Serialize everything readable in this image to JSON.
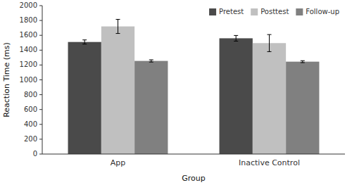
{
  "chart_data": {
    "type": "bar",
    "xlabel": "Group",
    "ylabel": "Reaction Time (ms)",
    "categories": [
      "App",
      "Inactive Control"
    ],
    "series": [
      {
        "name": "Pretest",
        "color": "#4a4a4a",
        "values": [
          1510,
          1560
        ],
        "errors": [
          28,
          38
        ]
      },
      {
        "name": "Posttest",
        "color": "#c0c0c0",
        "values": [
          1720,
          1495
        ],
        "errors": [
          95,
          115
        ]
      },
      {
        "name": "Follow-up",
        "color": "#808080",
        "values": [
          1255,
          1245
        ],
        "errors": [
          15,
          13
        ]
      }
    ],
    "ylim": [
      0,
      2000
    ],
    "yticks": [
      0,
      200,
      400,
      600,
      800,
      1000,
      1200,
      1400,
      1600,
      1800,
      2000
    ],
    "grid": false,
    "legend": "upper right"
  }
}
